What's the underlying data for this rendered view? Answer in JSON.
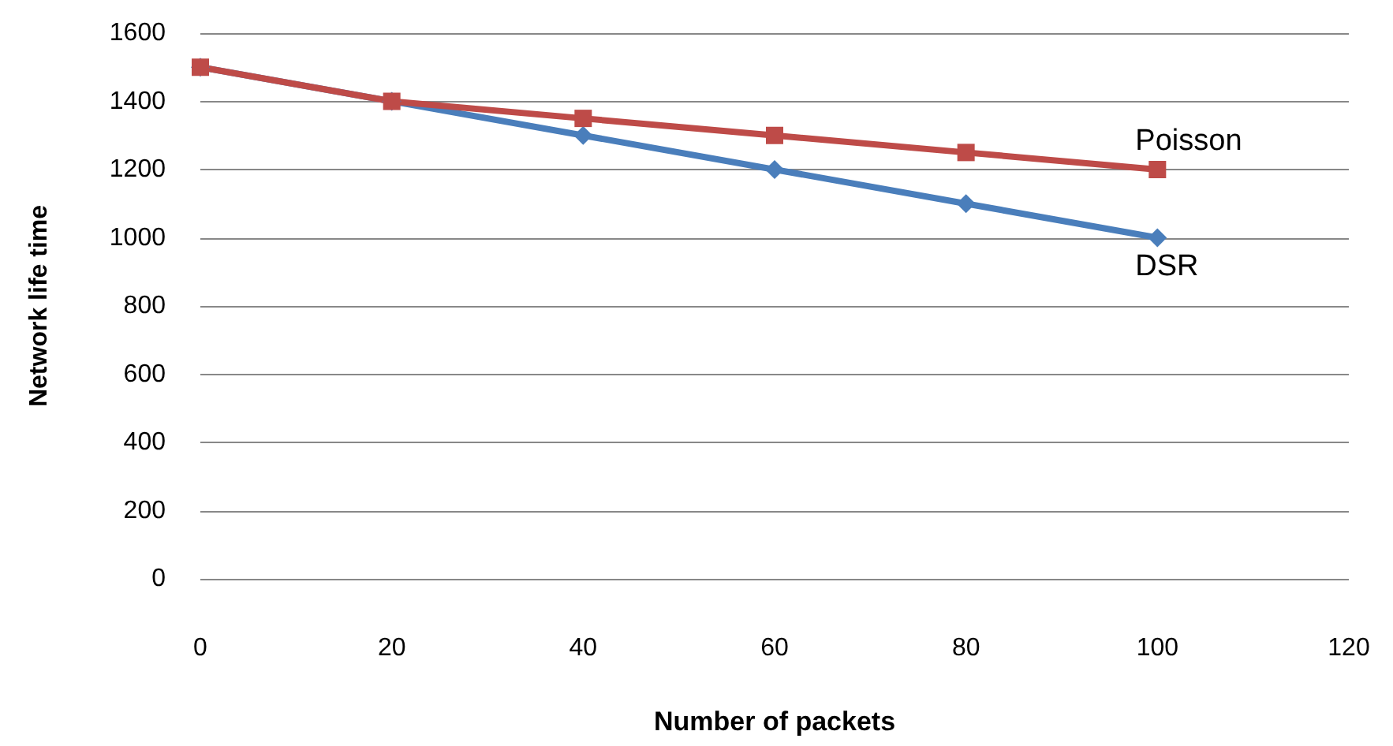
{
  "chart_data": {
    "type": "line",
    "xlabel": "Number of packets",
    "ylabel": "Network life time",
    "x": [
      0,
      20,
      40,
      60,
      80,
      100
    ],
    "series": [
      {
        "name": "DSR",
        "color": "#4a7ebb",
        "marker": "diamond",
        "values": [
          1500,
          1400,
          1300,
          1200,
          1100,
          1000
        ]
      },
      {
        "name": "Poisson",
        "color": "#be4b48",
        "marker": "square",
        "values": [
          1500,
          1400,
          1350,
          1300,
          1250,
          1200
        ]
      }
    ],
    "xlim": [
      0,
      120
    ],
    "xticks": [
      0,
      20,
      40,
      60,
      80,
      100,
      120
    ],
    "ylim": [
      0,
      1600
    ],
    "yticks": [
      0,
      200,
      400,
      600,
      800,
      1000,
      1200,
      1400,
      1600
    ],
    "grid": "y",
    "legend": false
  }
}
